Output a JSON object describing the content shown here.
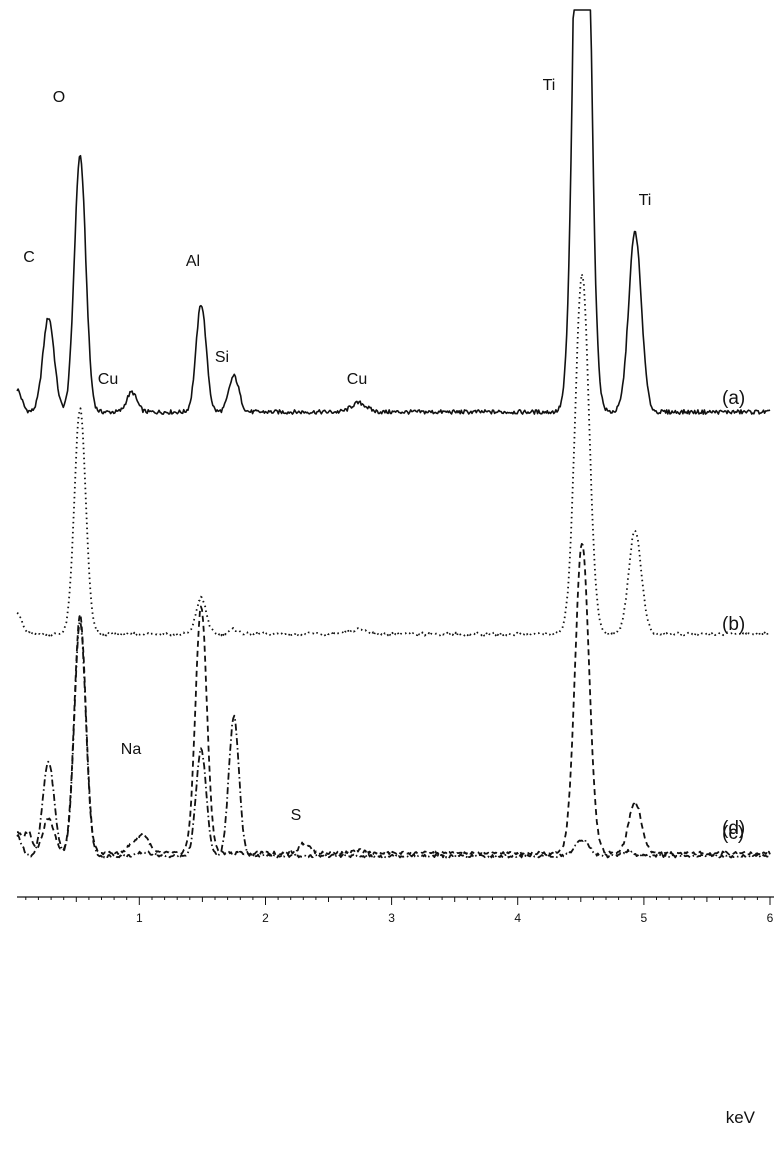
{
  "chart_data": {
    "type": "line",
    "title": "",
    "xlabel": "keV",
    "ylabel": "",
    "xlim": [
      0.03,
      6.0
    ],
    "x_ticks": [
      "1",
      "2",
      "3",
      "4",
      "5",
      "6"
    ],
    "grid": false,
    "legend": "none",
    "series": [
      {
        "name": "(a)",
        "style": "solid",
        "baseline_noise": 0.04,
        "peaks": [
          {
            "x": 0.28,
            "height": 1.05,
            "width": 0.045
          },
          {
            "x": 0.53,
            "height": 2.85,
            "width": 0.045
          },
          {
            "x": 0.94,
            "height": 0.22,
            "width": 0.04
          },
          {
            "x": 1.49,
            "height": 1.2,
            "width": 0.04
          },
          {
            "x": 1.75,
            "height": 0.4,
            "width": 0.04
          },
          {
            "x": 2.74,
            "height": 0.1,
            "width": 0.06
          },
          {
            "x": 4.51,
            "height": 10.0,
            "width": 0.055
          },
          {
            "x": 4.93,
            "height": 2.0,
            "width": 0.05
          }
        ],
        "peak_labels": [
          {
            "text": "C",
            "x": 0.28
          },
          {
            "text": "O",
            "x": 0.53
          },
          {
            "text": "Cu",
            "x": 0.94
          },
          {
            "text": "Al",
            "x": 1.49
          },
          {
            "text": "Si",
            "x": 1.75
          },
          {
            "text": "Cu",
            "x": 2.74
          },
          {
            "text": "Ti",
            "x": 4.51
          },
          {
            "text": "Ti",
            "x": 4.93
          }
        ]
      },
      {
        "name": "(b)",
        "style": "dotted",
        "baseline_noise": 0.03,
        "peaks": [
          {
            "x": 0.53,
            "height": 2.5,
            "width": 0.045
          },
          {
            "x": 1.49,
            "height": 0.4,
            "width": 0.04
          },
          {
            "x": 1.75,
            "height": 0.05,
            "width": 0.04
          },
          {
            "x": 2.74,
            "height": 0.05,
            "width": 0.06
          },
          {
            "x": 4.51,
            "height": 4.0,
            "width": 0.055
          },
          {
            "x": 4.93,
            "height": 1.15,
            "width": 0.05
          }
        ],
        "peak_labels": []
      },
      {
        "name": "(c)",
        "style": "dashed",
        "baseline_noise": 0.03,
        "peaks": [
          {
            "x": 0.12,
            "height": 0.25,
            "width": 0.03
          },
          {
            "x": 0.28,
            "height": 0.4,
            "width": 0.045
          },
          {
            "x": 0.53,
            "height": 2.8,
            "width": 0.045
          },
          {
            "x": 0.96,
            "height": 0.12,
            "width": 0.05
          },
          {
            "x": 1.04,
            "height": 0.18,
            "width": 0.04
          },
          {
            "x": 1.49,
            "height": 2.9,
            "width": 0.045
          },
          {
            "x": 2.31,
            "height": 0.12,
            "width": 0.04
          },
          {
            "x": 2.74,
            "height": 0.03,
            "width": 0.05
          },
          {
            "x": 4.51,
            "height": 3.65,
            "width": 0.055
          },
          {
            "x": 4.93,
            "height": 0.6,
            "width": 0.05
          }
        ],
        "peak_labels": [
          {
            "text": "Na",
            "x": 1.04
          },
          {
            "text": "S",
            "x": 2.31
          }
        ]
      },
      {
        "name": "(d)",
        "style": "dash-dot",
        "baseline_noise": 0.03,
        "peaks": [
          {
            "x": 0.28,
            "height": 1.15,
            "width": 0.045
          },
          {
            "x": 0.53,
            "height": 2.85,
            "width": 0.045
          },
          {
            "x": 1.04,
            "height": 0.05,
            "width": 0.05
          },
          {
            "x": 1.49,
            "height": 1.3,
            "width": 0.04
          },
          {
            "x": 1.75,
            "height": 1.7,
            "width": 0.04
          },
          {
            "x": 4.51,
            "height": 0.2,
            "width": 0.055
          },
          {
            "x": 4.87,
            "height": 0.06,
            "width": 0.04
          }
        ],
        "peak_labels": []
      }
    ]
  },
  "colors": {
    "line": "#111111",
    "background": "#ffffff"
  }
}
